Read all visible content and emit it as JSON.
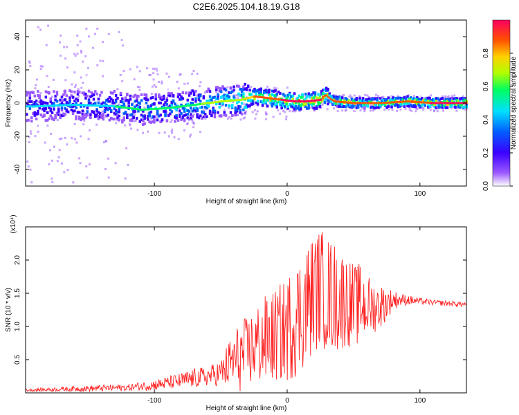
{
  "chart_data": [
    {
      "type": "heatmap",
      "title": "C2E6.2025.104.18.19.G18",
      "xlabel": "Height of straight line (km)",
      "ylabel": "Frequency (Hz)",
      "xlim": [
        -197,
        135
      ],
      "ylim": [
        -50,
        50
      ],
      "xticks": [
        -100,
        0,
        100
      ],
      "yticks": [
        -40,
        -20,
        0,
        20,
        40
      ],
      "colorbar": {
        "label": "Normalized spectral amplitude",
        "range": [
          0,
          1
        ],
        "ticks": [
          "0.0",
          "0.2",
          "0.4",
          "0.6",
          "0.8"
        ],
        "colors": [
          "#ffffff",
          "#9b59ff",
          "#3b00ff",
          "#0060ff",
          "#00e0ff",
          "#00ff60",
          "#b0ff00",
          "#ffd000",
          "#ff5000",
          "#ff0060"
        ]
      },
      "ridge": {
        "x": [
          -190,
          -160,
          -130,
          -110,
          -90,
          -70,
          -50,
          -35,
          -25,
          -15,
          -5,
          5,
          15,
          25,
          28,
          35,
          50,
          70,
          90,
          110,
          135
        ],
        "freq": [
          -2,
          -1,
          -2,
          -4,
          -3,
          -1,
          1,
          2,
          4,
          3,
          2,
          1,
          1,
          2,
          5,
          1,
          0,
          0,
          1,
          0,
          0
        ],
        "amplitude": [
          0.3,
          0.35,
          0.4,
          0.45,
          0.45,
          0.5,
          0.55,
          0.6,
          0.75,
          0.8,
          0.85,
          0.85,
          0.9,
          0.85,
          0.8,
          0.8,
          0.75,
          0.75,
          0.8,
          0.85,
          0.9
        ]
      }
    },
    {
      "type": "line",
      "title": "",
      "xlabel": "Height of straight line (km)",
      "ylabel": "SNR (10 * v/v)",
      "y_multiplier": "(x10⁴)",
      "xlim": [
        -197,
        135
      ],
      "ylim": [
        0,
        2.5
      ],
      "xticks": [
        -100,
        0,
        100
      ],
      "yticks": [
        0.5,
        1.0,
        1.5,
        2.0
      ],
      "series": [
        {
          "color": "#ff2020",
          "x": [
            -197,
            -180,
            -160,
            -140,
            -120,
            -100,
            -90,
            -80,
            -70,
            -60,
            -50,
            -45,
            -40,
            -35,
            -30,
            -25,
            -20,
            -15,
            -10,
            -5,
            0,
            5,
            10,
            15,
            20,
            25,
            30,
            35,
            40,
            45,
            50,
            55,
            60,
            65,
            70,
            75,
            80,
            85,
            90,
            100,
            110,
            120,
            135
          ],
          "y": [
            0.04,
            0.05,
            0.06,
            0.07,
            0.08,
            0.12,
            0.15,
            0.18,
            0.22,
            0.25,
            0.3,
            0.4,
            0.5,
            0.55,
            0.6,
            0.7,
            0.75,
            0.8,
            0.85,
            0.9,
            0.95,
            1.1,
            1.2,
            1.35,
            1.5,
            1.6,
            1.5,
            1.45,
            1.4,
            1.4,
            1.3,
            1.35,
            1.3,
            1.3,
            1.3,
            1.35,
            1.4,
            1.4,
            1.4,
            1.38,
            1.36,
            1.35,
            1.33
          ],
          "spread": [
            0.02,
            0.03,
            0.04,
            0.05,
            0.05,
            0.08,
            0.1,
            0.12,
            0.15,
            0.15,
            0.2,
            0.35,
            0.45,
            0.55,
            0.55,
            0.6,
            0.65,
            0.7,
            0.7,
            0.75,
            0.8,
            0.9,
            0.9,
            0.95,
            0.9,
            0.9,
            0.9,
            0.85,
            0.8,
            0.7,
            0.65,
            0.6,
            0.5,
            0.4,
            0.35,
            0.25,
            0.15,
            0.1,
            0.08,
            0.05,
            0.04,
            0.04,
            0.04
          ]
        }
      ]
    }
  ]
}
